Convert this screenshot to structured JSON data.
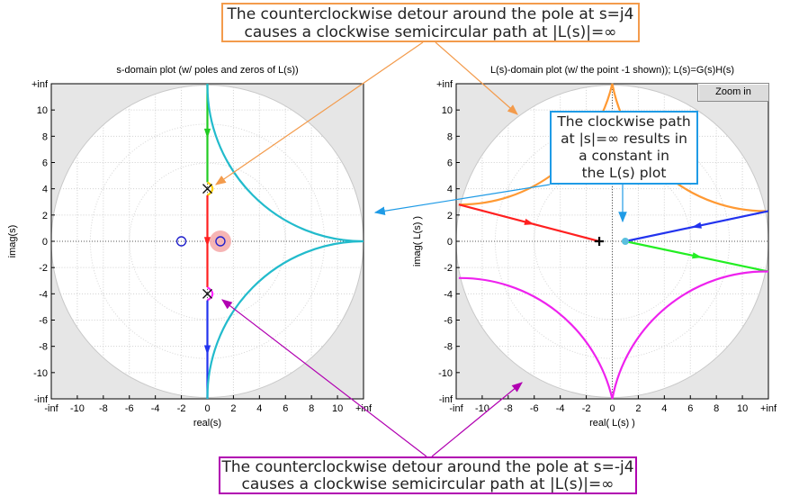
{
  "annotations": {
    "top": {
      "line1": "The counterclockwise detour around the pole at s=j4",
      "line2": "causes a clockwise semicircular path at |L(s)|=∞"
    },
    "bottom": {
      "line1": "The counterclockwise detour around the pole at s=-j4",
      "line2": "causes a clockwise semicircular path at |L(s)|=∞"
    },
    "middle": {
      "line1": "The clockwise path",
      "line2": "at |s|=∞ results in",
      "line3": "a constant in",
      "line4": "the L(s) plot"
    }
  },
  "zoom_button_label": "Zoom in",
  "colors": {
    "top_annotation": "#f39b4c",
    "bottom_annotation": "#b100b1",
    "middle_annotation": "#1f9be6",
    "pole_zero": "#2222cc"
  },
  "chart_data": [
    {
      "type": "line",
      "title": "s-domain plot (w/ poles and zeros of L(s))",
      "xlabel": "real(s)",
      "ylabel": "imag(s)",
      "x_ticks": [
        "-inf",
        "-10",
        "-8",
        "-6",
        "-4",
        "-2",
        "0",
        "2",
        "4",
        "6",
        "8",
        "10",
        "+inf"
      ],
      "y_ticks": [
        "+inf",
        "10",
        "8",
        "6",
        "4",
        "2",
        "0",
        "-2",
        "-4",
        "-6",
        "-8",
        "-10",
        "-inf"
      ],
      "xlim": [
        -12,
        12
      ],
      "ylim": [
        -12,
        12
      ],
      "grid": true,
      "poles": [
        [
          0,
          4
        ],
        [
          0,
          -4
        ]
      ],
      "zeros": [
        [
          -2,
          0
        ],
        [
          1,
          0
        ]
      ],
      "contour": [
        {
          "segment": "positive imaginary axis",
          "color": "#22cc22",
          "points": [
            [
              0,
              12
            ],
            [
              0,
              4.5
            ]
          ]
        },
        {
          "segment": "detour around s=j4",
          "color": "#ffd000",
          "points": [
            [
              0,
              4.5
            ],
            [
              0.4,
              4
            ],
            [
              0,
              3.5
            ]
          ]
        },
        {
          "segment": "axis between detours",
          "color": "#ff2020",
          "points": [
            [
              0,
              3.5
            ],
            [
              0,
              -3.5
            ]
          ]
        },
        {
          "segment": "detour around s=-j4",
          "color": "#ff22ff",
          "points": [
            [
              0,
              -3.5
            ],
            [
              0.4,
              -4
            ],
            [
              0,
              -4.5
            ]
          ]
        },
        {
          "segment": "negative imaginary axis",
          "color": "#2233ee",
          "points": [
            [
              0,
              -4.5
            ],
            [
              0,
              -12
            ]
          ]
        },
        {
          "segment": "infinite semicircle",
          "color": "#22bbcc",
          "points": [
            [
              0,
              -12
            ],
            [
              12,
              0
            ],
            [
              0,
              12
            ]
          ]
        }
      ]
    },
    {
      "type": "line",
      "title": "L(s)-domain plot (w/ the point -1 shown)); L(s)=G(s)H(s)",
      "xlabel": "real( L(s) )",
      "ylabel": "imag( L(s) )",
      "x_ticks": [
        "-inf",
        "-10",
        "-8",
        "-6",
        "-4",
        "-2",
        "0",
        "2",
        "4",
        "6",
        "8",
        "10",
        "+inf"
      ],
      "y_ticks": [
        "+inf",
        "10",
        "8",
        "6",
        "4",
        "2",
        "0",
        "-2",
        "-4",
        "-6",
        "-8",
        "-10",
        "-inf"
      ],
      "xlim": [
        -12,
        12
      ],
      "ylim": [
        -12,
        12
      ],
      "grid": true,
      "critical_point": [
        -1,
        0
      ],
      "constant_point": [
        1,
        0
      ],
      "contour": [
        {
          "segment": "image of positive imaginary axis",
          "color": "#22ee22",
          "points": [
            [
              1,
              0
            ],
            [
              12,
              -2.3
            ]
          ]
        },
        {
          "segment": "image of detour around s=j4 (upper semicircle)",
          "color": "#ff9933",
          "points": [
            [
              -11.8,
              2.8
            ],
            [
              0,
              12
            ],
            [
              11.8,
              2.3
            ]
          ]
        },
        {
          "segment": "image of axis between detours",
          "color": "#ff2020",
          "points": [
            [
              -11.8,
              2.8
            ],
            [
              -1,
              0
            ]
          ]
        },
        {
          "segment": "image of detour around s=-j4 (lower semicircle)",
          "color": "#ee22ee",
          "points": [
            [
              -11.8,
              -2.8
            ],
            [
              0,
              -12
            ],
            [
              12,
              -2.3
            ]
          ]
        },
        {
          "segment": "image of negative imaginary axis",
          "color": "#2233ee",
          "points": [
            [
              12,
              2.3
            ],
            [
              1,
              0
            ]
          ]
        }
      ]
    }
  ]
}
